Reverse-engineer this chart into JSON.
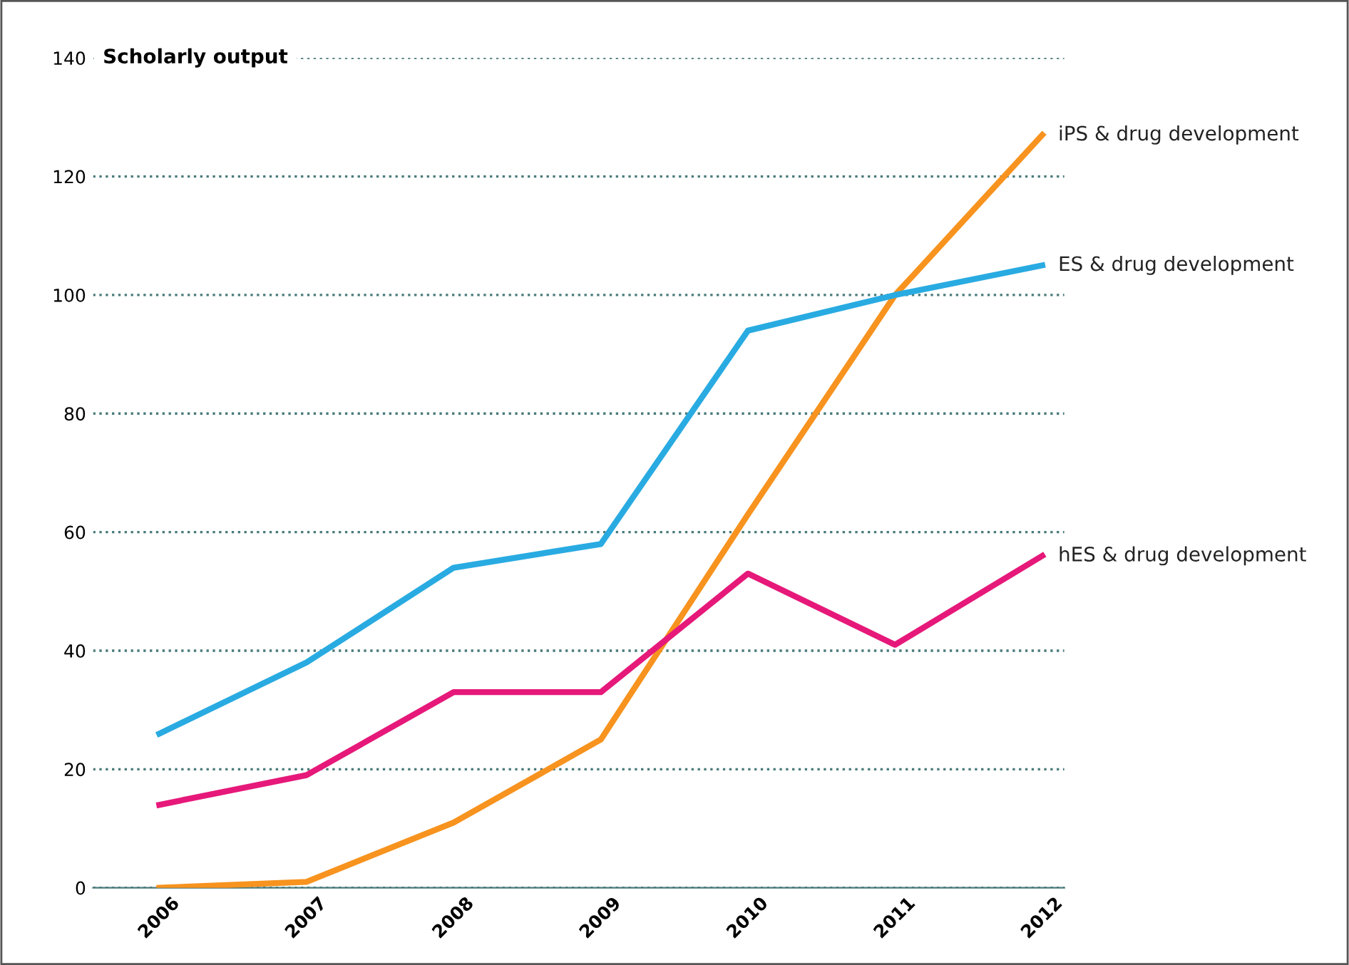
{
  "chart_data": {
    "type": "line",
    "ylabel": "Scholarly output",
    "categories": [
      "2006",
      "2007",
      "2008",
      "2009",
      "2010",
      "2011",
      "2012"
    ],
    "series": [
      {
        "name": "iPS & drug development",
        "color": "#f7931e",
        "values": [
          0,
          1,
          11,
          25,
          63,
          100,
          127
        ]
      },
      {
        "name": "ES & drug development",
        "color": "#29abe2",
        "values": [
          26,
          38,
          54,
          58,
          94,
          100,
          105
        ]
      },
      {
        "name": "hES & drug development",
        "color": "#e6197a",
        "values": [
          14,
          19,
          33,
          33,
          53,
          41,
          56
        ]
      }
    ],
    "ylim": [
      0,
      140
    ],
    "yticks": [
      0,
      20,
      40,
      60,
      80,
      100,
      120,
      140
    ],
    "grid": "y",
    "marker": "none",
    "line_style": "solid",
    "legend": false
  }
}
